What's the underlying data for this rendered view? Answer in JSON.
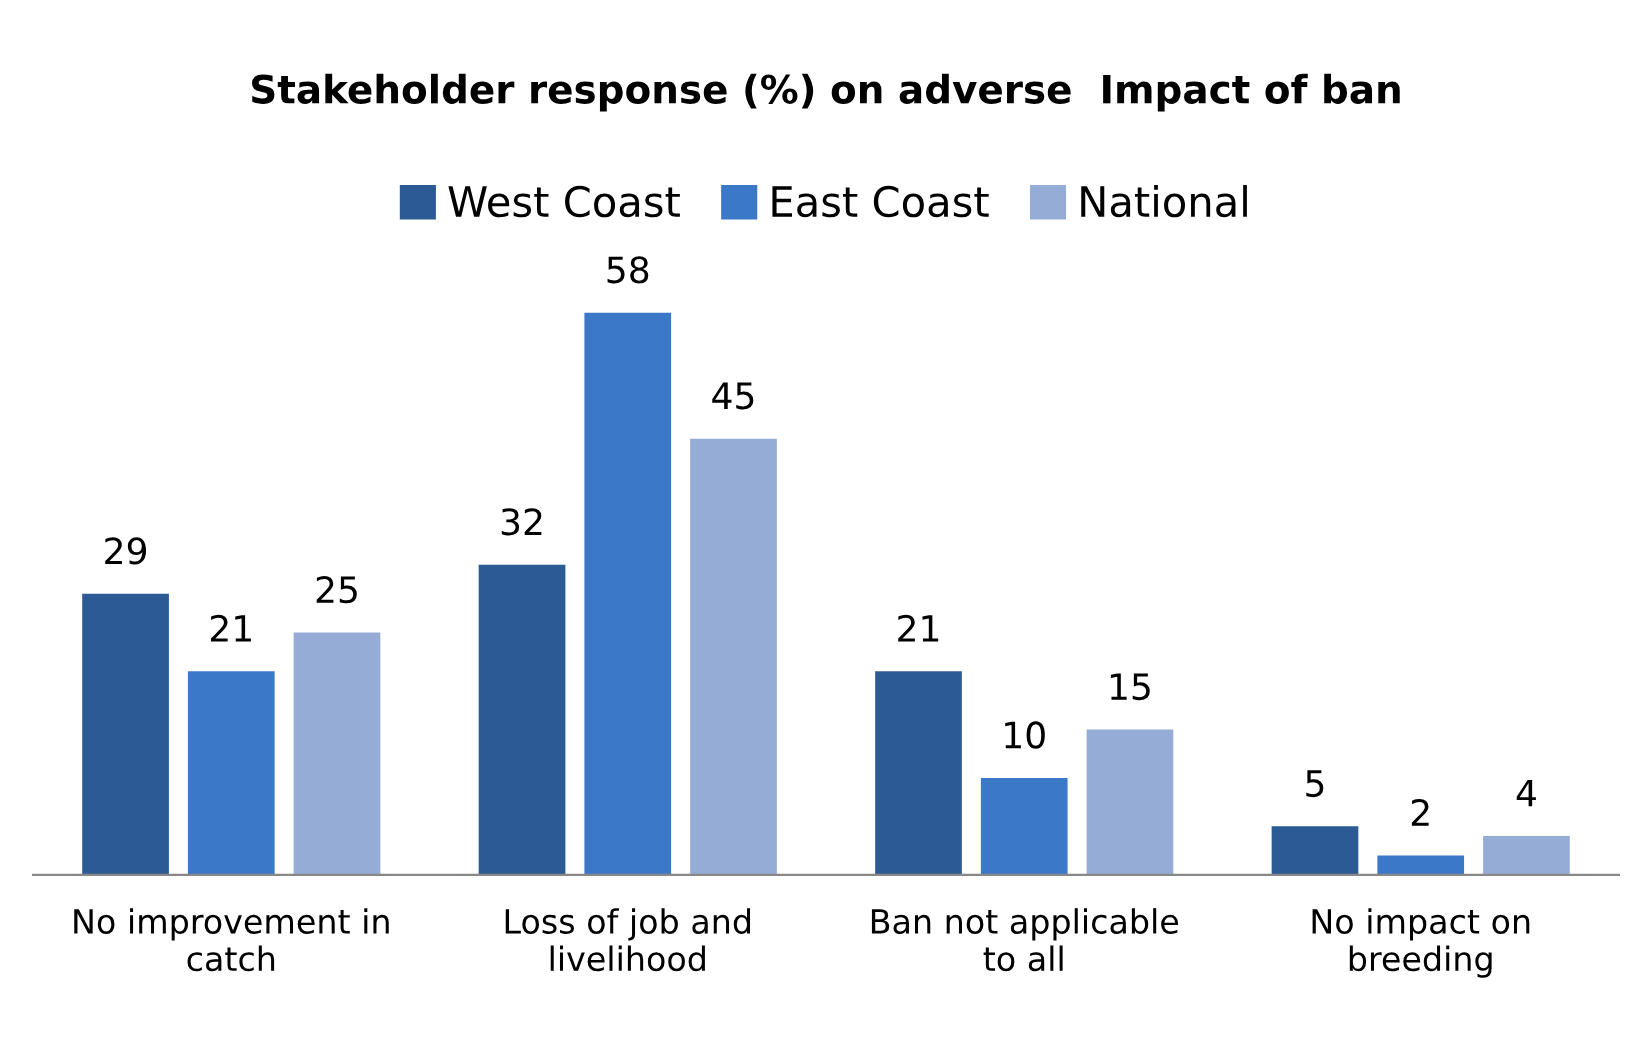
{
  "chart_data": {
    "type": "bar",
    "title": "Stakeholder response (%) on adverse  Impact of ban",
    "categories": [
      "No improvement in\ncatch",
      "Loss of job and\nlivelihood",
      "Ban not applicable\nto all",
      "No impact on\nbreeding"
    ],
    "series": [
      {
        "name": "West Coast",
        "color": "#2c5a94",
        "values": [
          29,
          32,
          21,
          5
        ]
      },
      {
        "name": "East Coast",
        "color": "#3b78c8",
        "values": [
          21,
          58,
          10,
          2
        ]
      },
      {
        "name": "National",
        "color": "#95acd6",
        "values": [
          25,
          45,
          15,
          4
        ]
      }
    ],
    "data_labels": true,
    "legend": "top",
    "grid": false
  }
}
